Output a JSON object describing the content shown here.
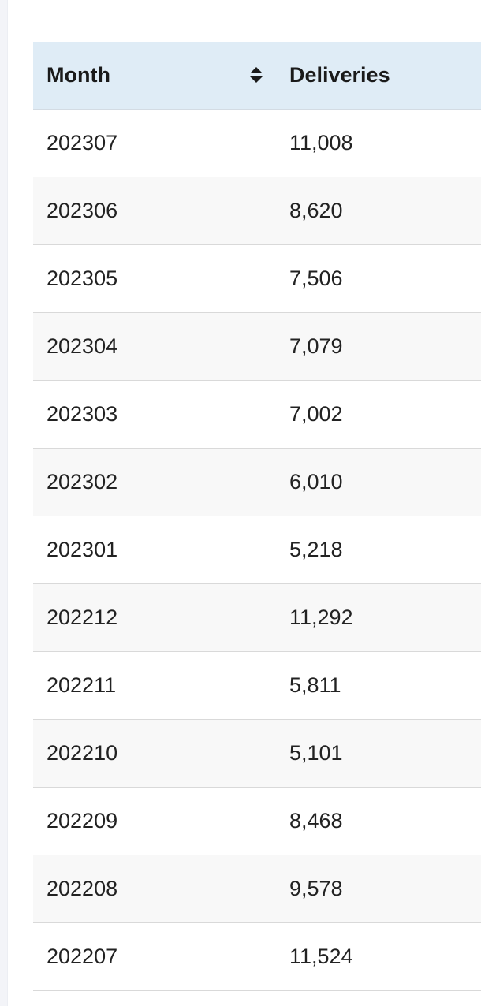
{
  "table": {
    "columns": [
      {
        "label": "Month",
        "sortable": true,
        "sort_icon": "sort-both-icon"
      },
      {
        "label": "Deliveries",
        "sortable": false
      }
    ],
    "rows": [
      {
        "month": "202307",
        "deliveries": "11,008"
      },
      {
        "month": "202306",
        "deliveries": "8,620"
      },
      {
        "month": "202305",
        "deliveries": "7,506"
      },
      {
        "month": "202304",
        "deliveries": "7,079"
      },
      {
        "month": "202303",
        "deliveries": "7,002"
      },
      {
        "month": "202302",
        "deliveries": "6,010"
      },
      {
        "month": "202301",
        "deliveries": "5,218"
      },
      {
        "month": "202212",
        "deliveries": "11,292"
      },
      {
        "month": "202211",
        "deliveries": "5,811"
      },
      {
        "month": "202210",
        "deliveries": "5,101"
      },
      {
        "month": "202209",
        "deliveries": "8,468"
      },
      {
        "month": "202208",
        "deliveries": "9,578"
      },
      {
        "month": "202207",
        "deliveries": "11,524"
      }
    ]
  },
  "colors": {
    "header_background": "#dfecf6",
    "stripe_background": "#f8f8f8",
    "row_border": "#d9d9d9",
    "text": "#222222"
  }
}
